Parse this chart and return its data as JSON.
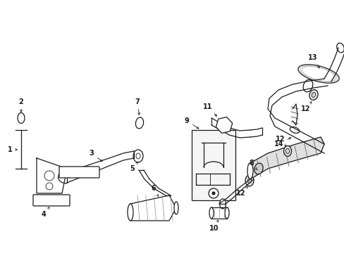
{
  "bg_color": "#ffffff",
  "line_color": "#1a1a1a",
  "label_color": "#1a1a1a",
  "label_fontsize": 7.0,
  "fig_width": 4.89,
  "fig_height": 3.6,
  "dpi": 100
}
